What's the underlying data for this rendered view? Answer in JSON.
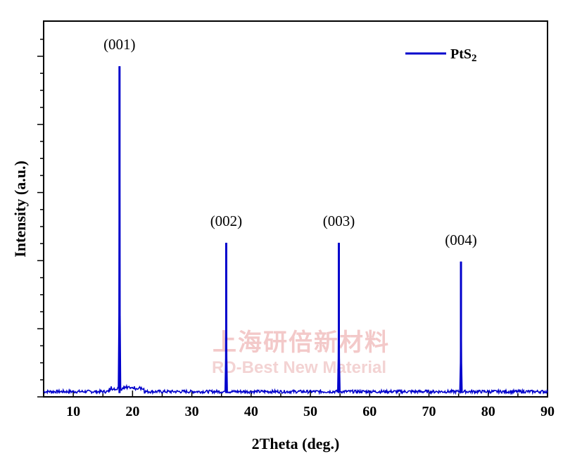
{
  "chart_data": {
    "type": "line",
    "xlabel": "2Theta (deg.)",
    "ylabel": "Intensity (a.u.)",
    "xlim": [
      5,
      90
    ],
    "ylim": [
      0,
      100
    ],
    "x_ticks": [
      10,
      20,
      30,
      40,
      50,
      60,
      70,
      80,
      90
    ],
    "y_ticks_labeled": false,
    "legend": {
      "position": "top-right"
    },
    "series": [
      {
        "name": "PtS2",
        "color": "#0000cc",
        "baseline": 1,
        "peaks": [
          {
            "x": 17.8,
            "y": 88
          },
          {
            "x": 35.8,
            "y": 41
          },
          {
            "x": 54.8,
            "y": 41
          },
          {
            "x": 75.4,
            "y": 36
          }
        ]
      }
    ],
    "annotations": [
      {
        "text": "(001)",
        "x": 17.8
      },
      {
        "text": "(002)",
        "x": 35.8
      },
      {
        "text": "(003)",
        "x": 54.8
      },
      {
        "text": "(004)",
        "x": 75.4
      }
    ]
  },
  "legend": {
    "label": "PtS",
    "subscript": "2"
  },
  "watermark": {
    "line1": "上海研倍新材料",
    "line2": "RD-Best New Material"
  }
}
